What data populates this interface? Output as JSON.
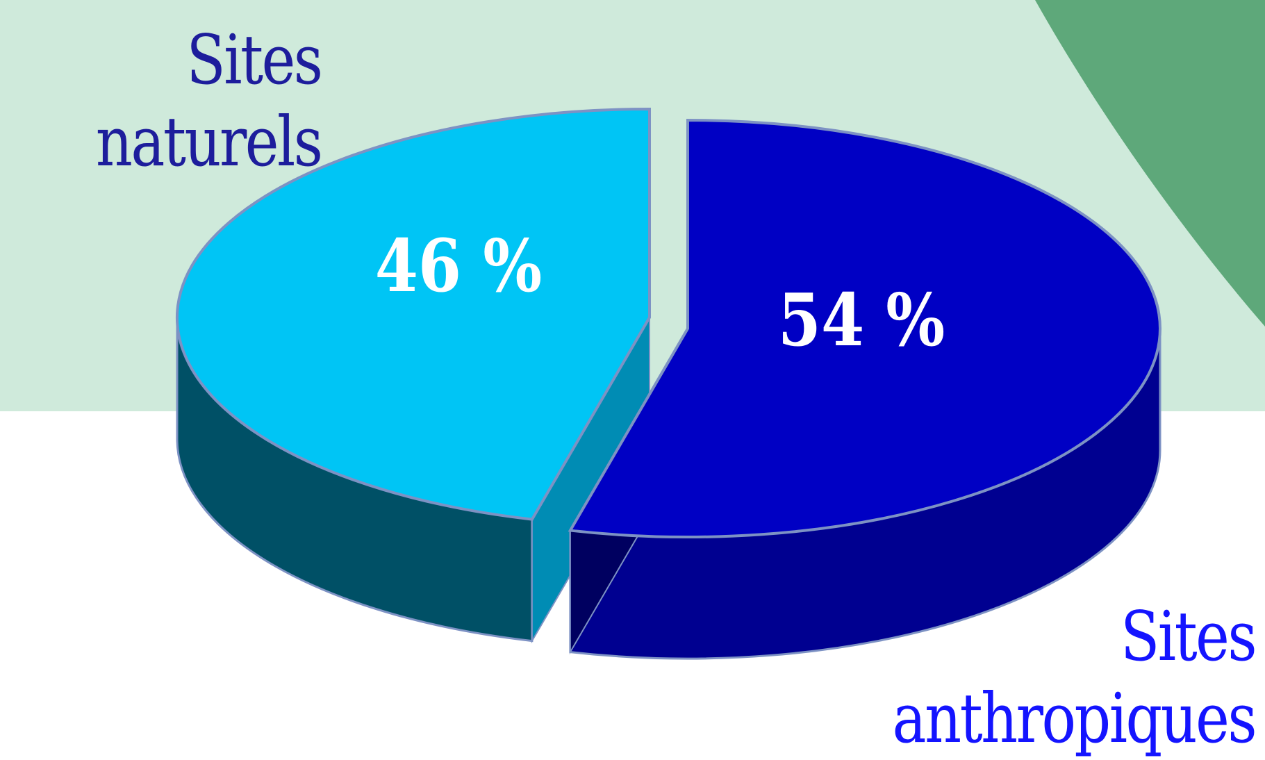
{
  "chart_data": {
    "type": "pie",
    "categories": [
      "Sites naturels",
      "Sites anthropiques"
    ],
    "values": [
      46,
      54
    ],
    "value_labels": [
      "46 %",
      "54 %"
    ],
    "category_labels": [
      {
        "line1": "Sites",
        "line2": "naturels"
      },
      {
        "line1": "Sites",
        "line2": "anthropiques"
      }
    ],
    "colors": {
      "natural_top": "#00c5f5",
      "natural_side": "#005066",
      "natural_side_light": "#008cb4",
      "anthro_top": "#0000c4",
      "anthro_side": "#000090",
      "anthro_side_dark": "#000060",
      "outline": "#7d92c4",
      "label_natural": "#1d1d9c",
      "label_anthro": "#1414ff",
      "band": "#cfeadb",
      "corner": "#5ea87a"
    }
  }
}
